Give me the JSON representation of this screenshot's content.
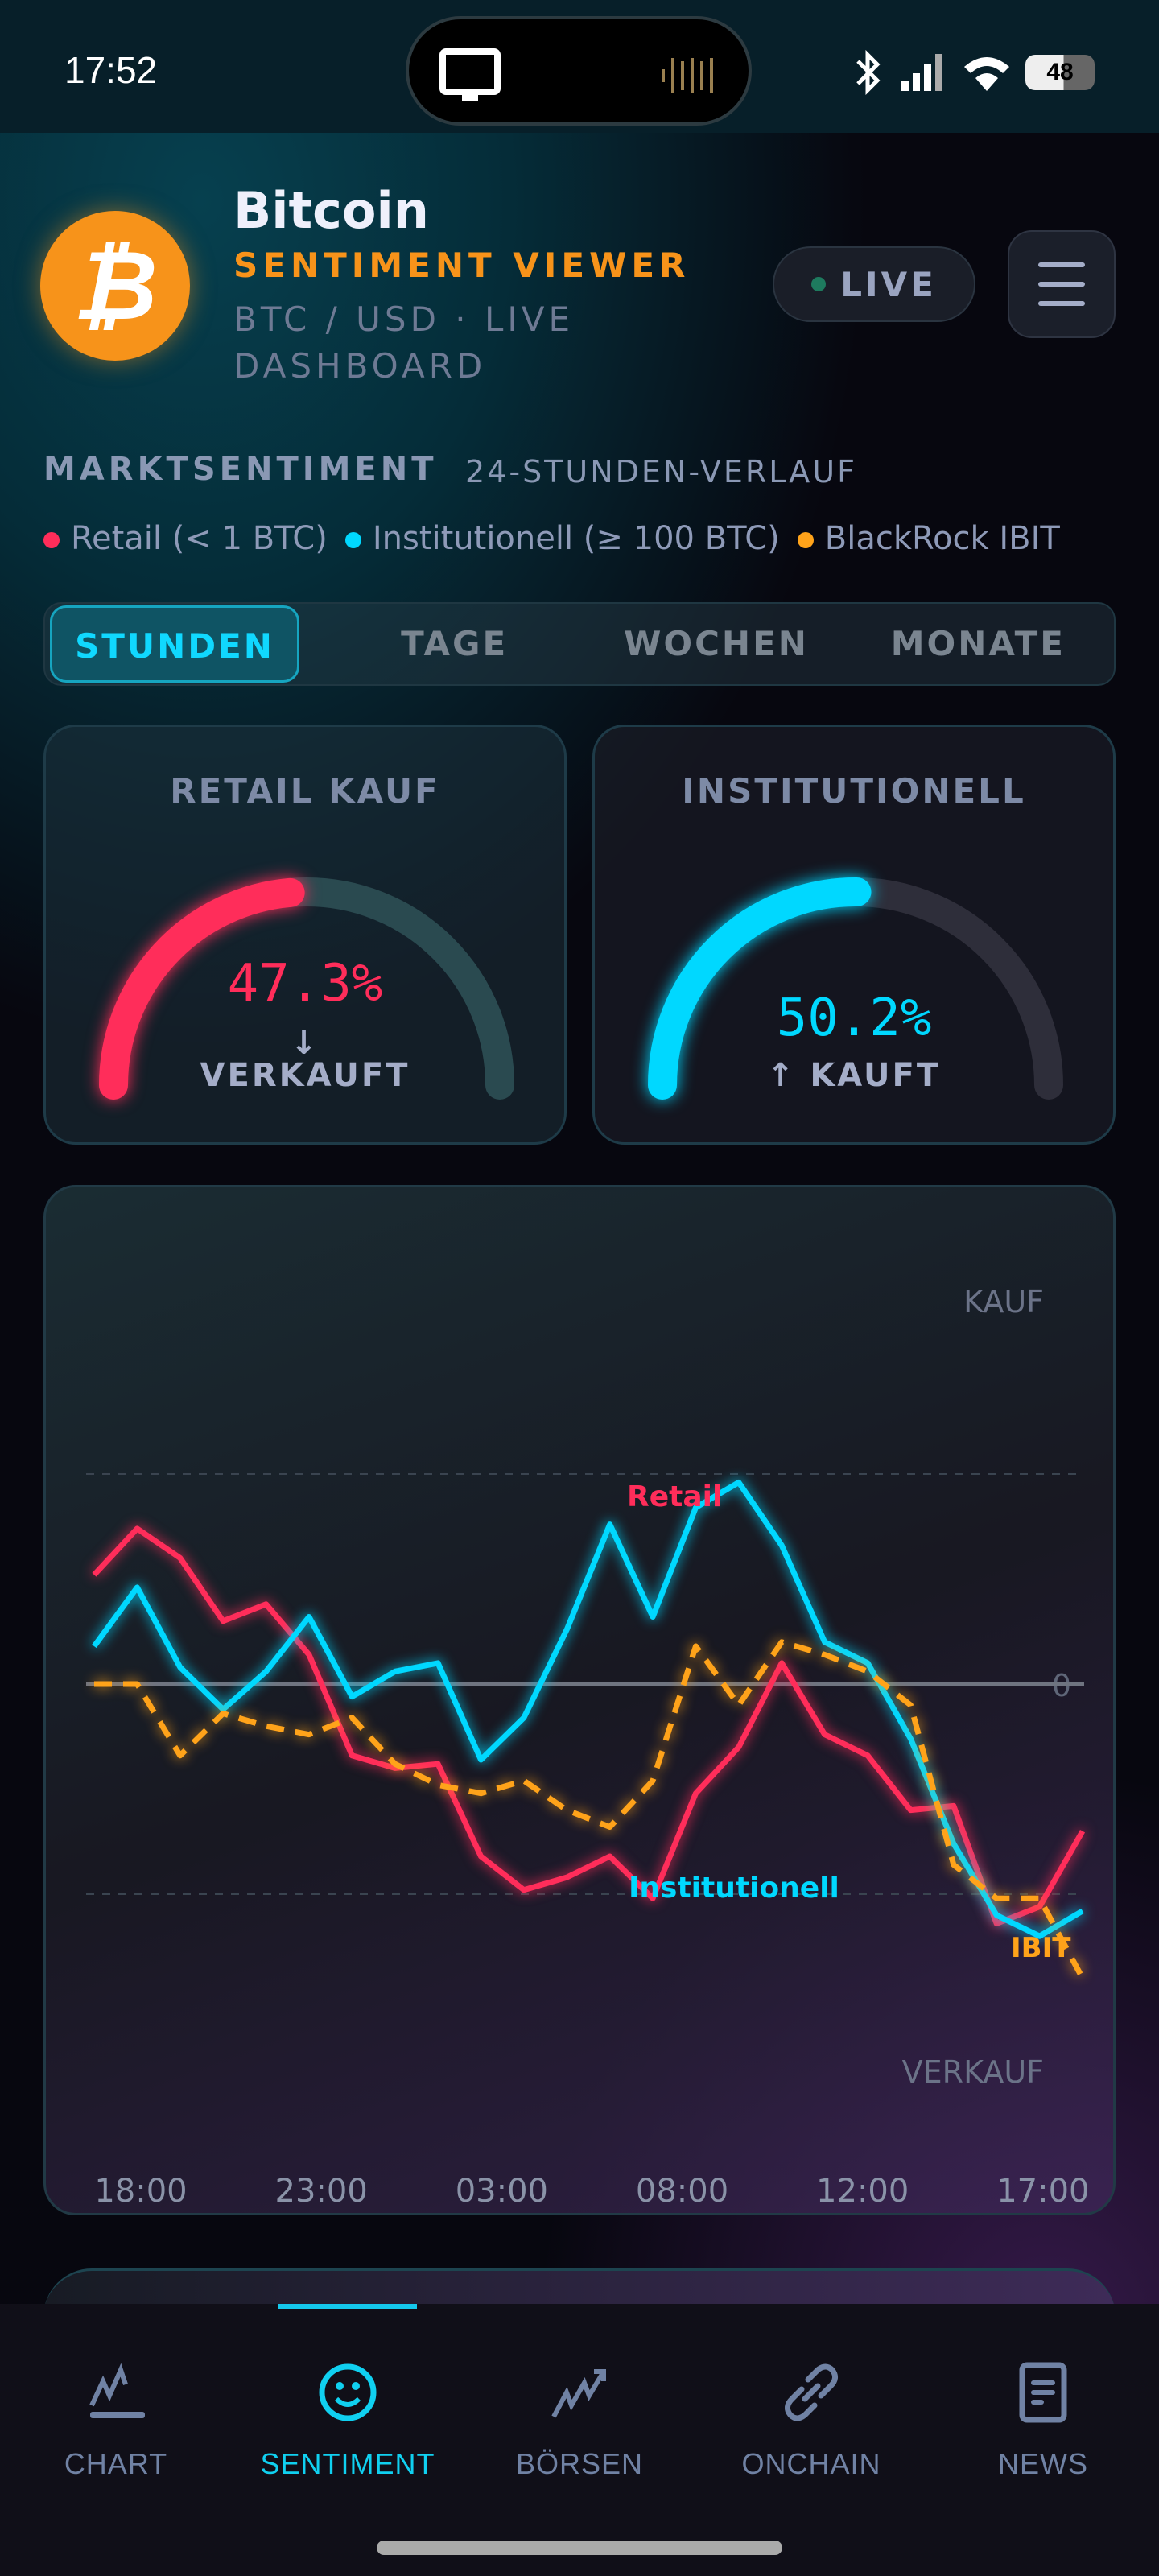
{
  "status": {
    "time": "17:52",
    "battery": "48"
  },
  "header": {
    "title": "Bitcoin",
    "subtitle": "SENTIMENT VIEWER",
    "pair": "BTC / USD · LIVE DASHBOARD",
    "live_label": "LIVE",
    "logo_symbol": "₿"
  },
  "section": {
    "title": "MARKTSENTIMENT",
    "subtitle": "24-STUNDEN-VERLAUF"
  },
  "legend": [
    {
      "label": "Retail (< 1 BTC)",
      "color": "#ff2d5a"
    },
    {
      "label": "Institutionell (≥ 100 BTC)",
      "color": "#00d8ff"
    },
    {
      "label": "BlackRock IBIT",
      "color": "#ffa31a"
    }
  ],
  "tabs": [
    {
      "label": "STUNDEN",
      "active": true
    },
    {
      "label": "TAGE"
    },
    {
      "label": "WOCHEN"
    },
    {
      "label": "MONATE"
    }
  ],
  "gauges": [
    {
      "title": "RETAIL KAUF",
      "value": "47.3%",
      "percent": 47.3,
      "arrow": "↓",
      "status": "VERKAUFT",
      "color": "#ff2d5a"
    },
    {
      "title": "INSTITUTIONELL",
      "value": "50.2%",
      "percent": 50.2,
      "arrow": "↑",
      "status": "KAUFT",
      "color": "#00d8ff"
    }
  ],
  "chart_data": {
    "type": "line",
    "y_top_label": "KAUF",
    "y_bottom_label": "VERKAUF",
    "zero_label": "0",
    "x_tick_labels": [
      "18:00",
      "23:00",
      "03:00",
      "08:00",
      "12:00",
      "17:00"
    ],
    "ylim": [
      -100,
      100
    ],
    "reference_lines": [
      50,
      -50
    ],
    "series": [
      {
        "name": "Retail",
        "color": "#ff2d5a",
        "dashed": false,
        "values": [
          26,
          37,
          30,
          15,
          19,
          7,
          -17,
          -20,
          -19,
          -41,
          -49,
          -46,
          -41,
          -51,
          -26,
          -15,
          5,
          -12,
          -17,
          -30,
          -29,
          -57,
          -53,
          -35
        ]
      },
      {
        "name": "Institutionell",
        "color": "#00d8ff",
        "dashed": false,
        "values": [
          9,
          23,
          4,
          -6,
          3,
          16,
          -3,
          3,
          5,
          -18,
          -8,
          13,
          38,
          16,
          42,
          48,
          33,
          10,
          5,
          -13,
          -38,
          -55,
          -60,
          -54
        ]
      },
      {
        "name": "IBIT",
        "color": "#ffa31a",
        "dashed": true,
        "values": [
          0,
          0,
          -17,
          -7,
          -10,
          -12,
          -8,
          -19,
          -24,
          -26,
          -23,
          -30,
          -34,
          -23,
          9,
          -5,
          10,
          7,
          3,
          -5,
          -43,
          -51,
          -51,
          -70
        ]
      }
    ]
  },
  "nav": [
    {
      "label": "CHART",
      "icon": "chart-icon"
    },
    {
      "label": "SENTIMENT",
      "icon": "smiley-icon",
      "active": true
    },
    {
      "label": "BÖRSEN",
      "icon": "trend-up-icon"
    },
    {
      "label": "ONCHAIN",
      "icon": "link-icon"
    },
    {
      "label": "NEWS",
      "icon": "news-icon"
    }
  ]
}
